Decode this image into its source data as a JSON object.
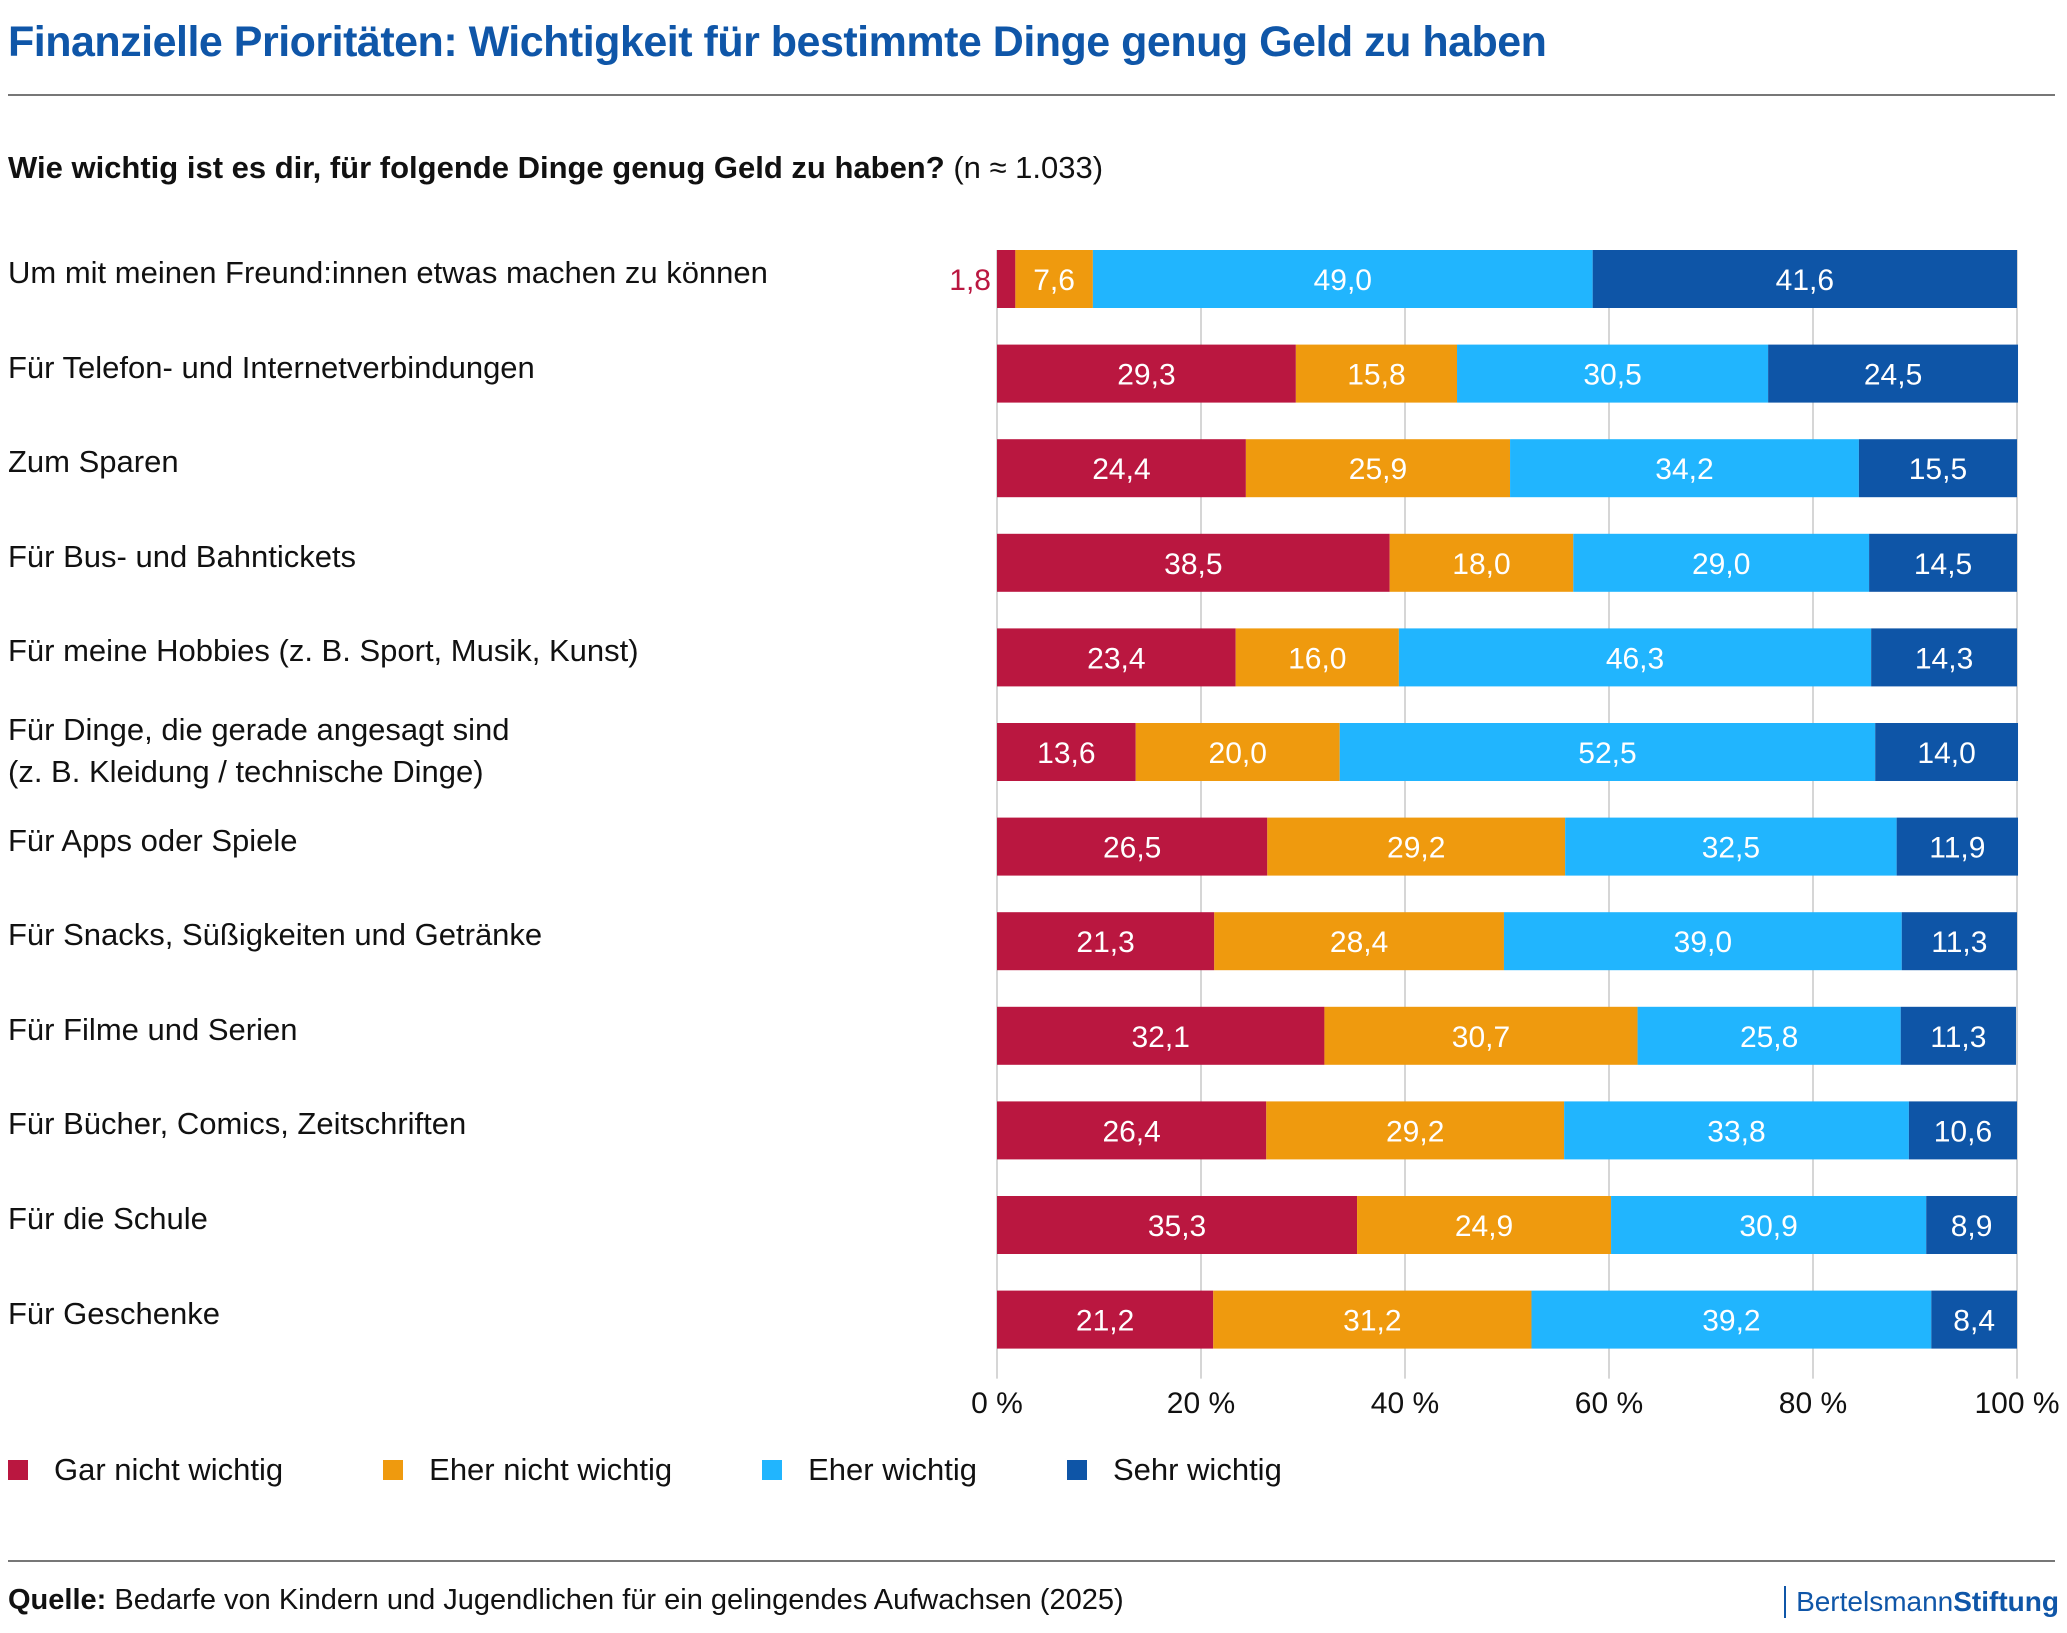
{
  "title": "Finanzielle Prioritäten: Wichtigkeit für bestimmte Dinge genug Geld zu haben",
  "subtitle": {
    "question": "Wie wichtig ist es dir, für folgende Dinge genug Geld zu haben?",
    "sample": "(n ≈ 1.033)"
  },
  "source": {
    "label": "Quelle:",
    "text": "Bedarfe von Kindern und Jugendlichen für ein gelingendes Aufwachsen (2025)"
  },
  "logo": {
    "part1": "Bertelsmann",
    "part2": "Stiftung"
  },
  "chart_data": {
    "type": "bar",
    "orientation": "horizontal",
    "stacked": true,
    "title": "Finanzielle Prioritäten: Wichtigkeit für bestimmte Dinge genug Geld zu haben",
    "xlabel": "",
    "ylabel": "",
    "xlim": [
      0,
      100
    ],
    "xticks": [
      "0 %",
      "20 %",
      "40 %",
      "60 %",
      "80 %",
      "100 %"
    ],
    "xtick_values": [
      0,
      20,
      40,
      60,
      80,
      100
    ],
    "grid": true,
    "legend_position": "bottom-left",
    "categories": [
      [
        "Um mit meinen Freund:innen etwas machen zu können"
      ],
      [
        "Für Telefon- und Internetverbindungen"
      ],
      [
        "Zum Sparen"
      ],
      [
        "Für Bus- und Bahntickets"
      ],
      [
        "Für meine Hobbies (z. B. Sport, Musik, Kunst)"
      ],
      [
        "Für Dinge, die gerade angesagt sind",
        "(z. B. Kleidung / technische Dinge)"
      ],
      [
        "Für Apps oder Spiele"
      ],
      [
        "Für Snacks, Süßigkeiten und Getränke"
      ],
      [
        "Für Filme und Serien"
      ],
      [
        "Für Bücher, Comics, Zeitschriften"
      ],
      [
        "Für die Schule"
      ],
      [
        "Für Geschenke"
      ]
    ],
    "series": [
      {
        "name": "Gar nicht wichtig",
        "color": "#ba1740",
        "values": [
          1.8,
          29.3,
          24.4,
          38.5,
          23.4,
          13.6,
          26.5,
          21.3,
          32.1,
          26.4,
          35.3,
          21.2
        ]
      },
      {
        "name": "Eher nicht wichtig",
        "color": "#ef9a0e",
        "values": [
          7.6,
          15.8,
          25.9,
          18.0,
          16.0,
          20.0,
          29.2,
          28.4,
          30.7,
          29.2,
          24.9,
          31.2
        ]
      },
      {
        "name": "Eher wichtig",
        "color": "#21b5fe",
        "values": [
          49.0,
          30.5,
          34.2,
          29.0,
          46.3,
          52.5,
          32.5,
          39.0,
          25.8,
          33.8,
          30.9,
          39.2
        ]
      },
      {
        "name": "Sehr wichtig",
        "color": "#0e55a7",
        "values": [
          41.6,
          24.5,
          15.5,
          14.5,
          14.3,
          14.0,
          11.9,
          11.3,
          11.3,
          10.6,
          8.9,
          8.4
        ]
      }
    ]
  }
}
